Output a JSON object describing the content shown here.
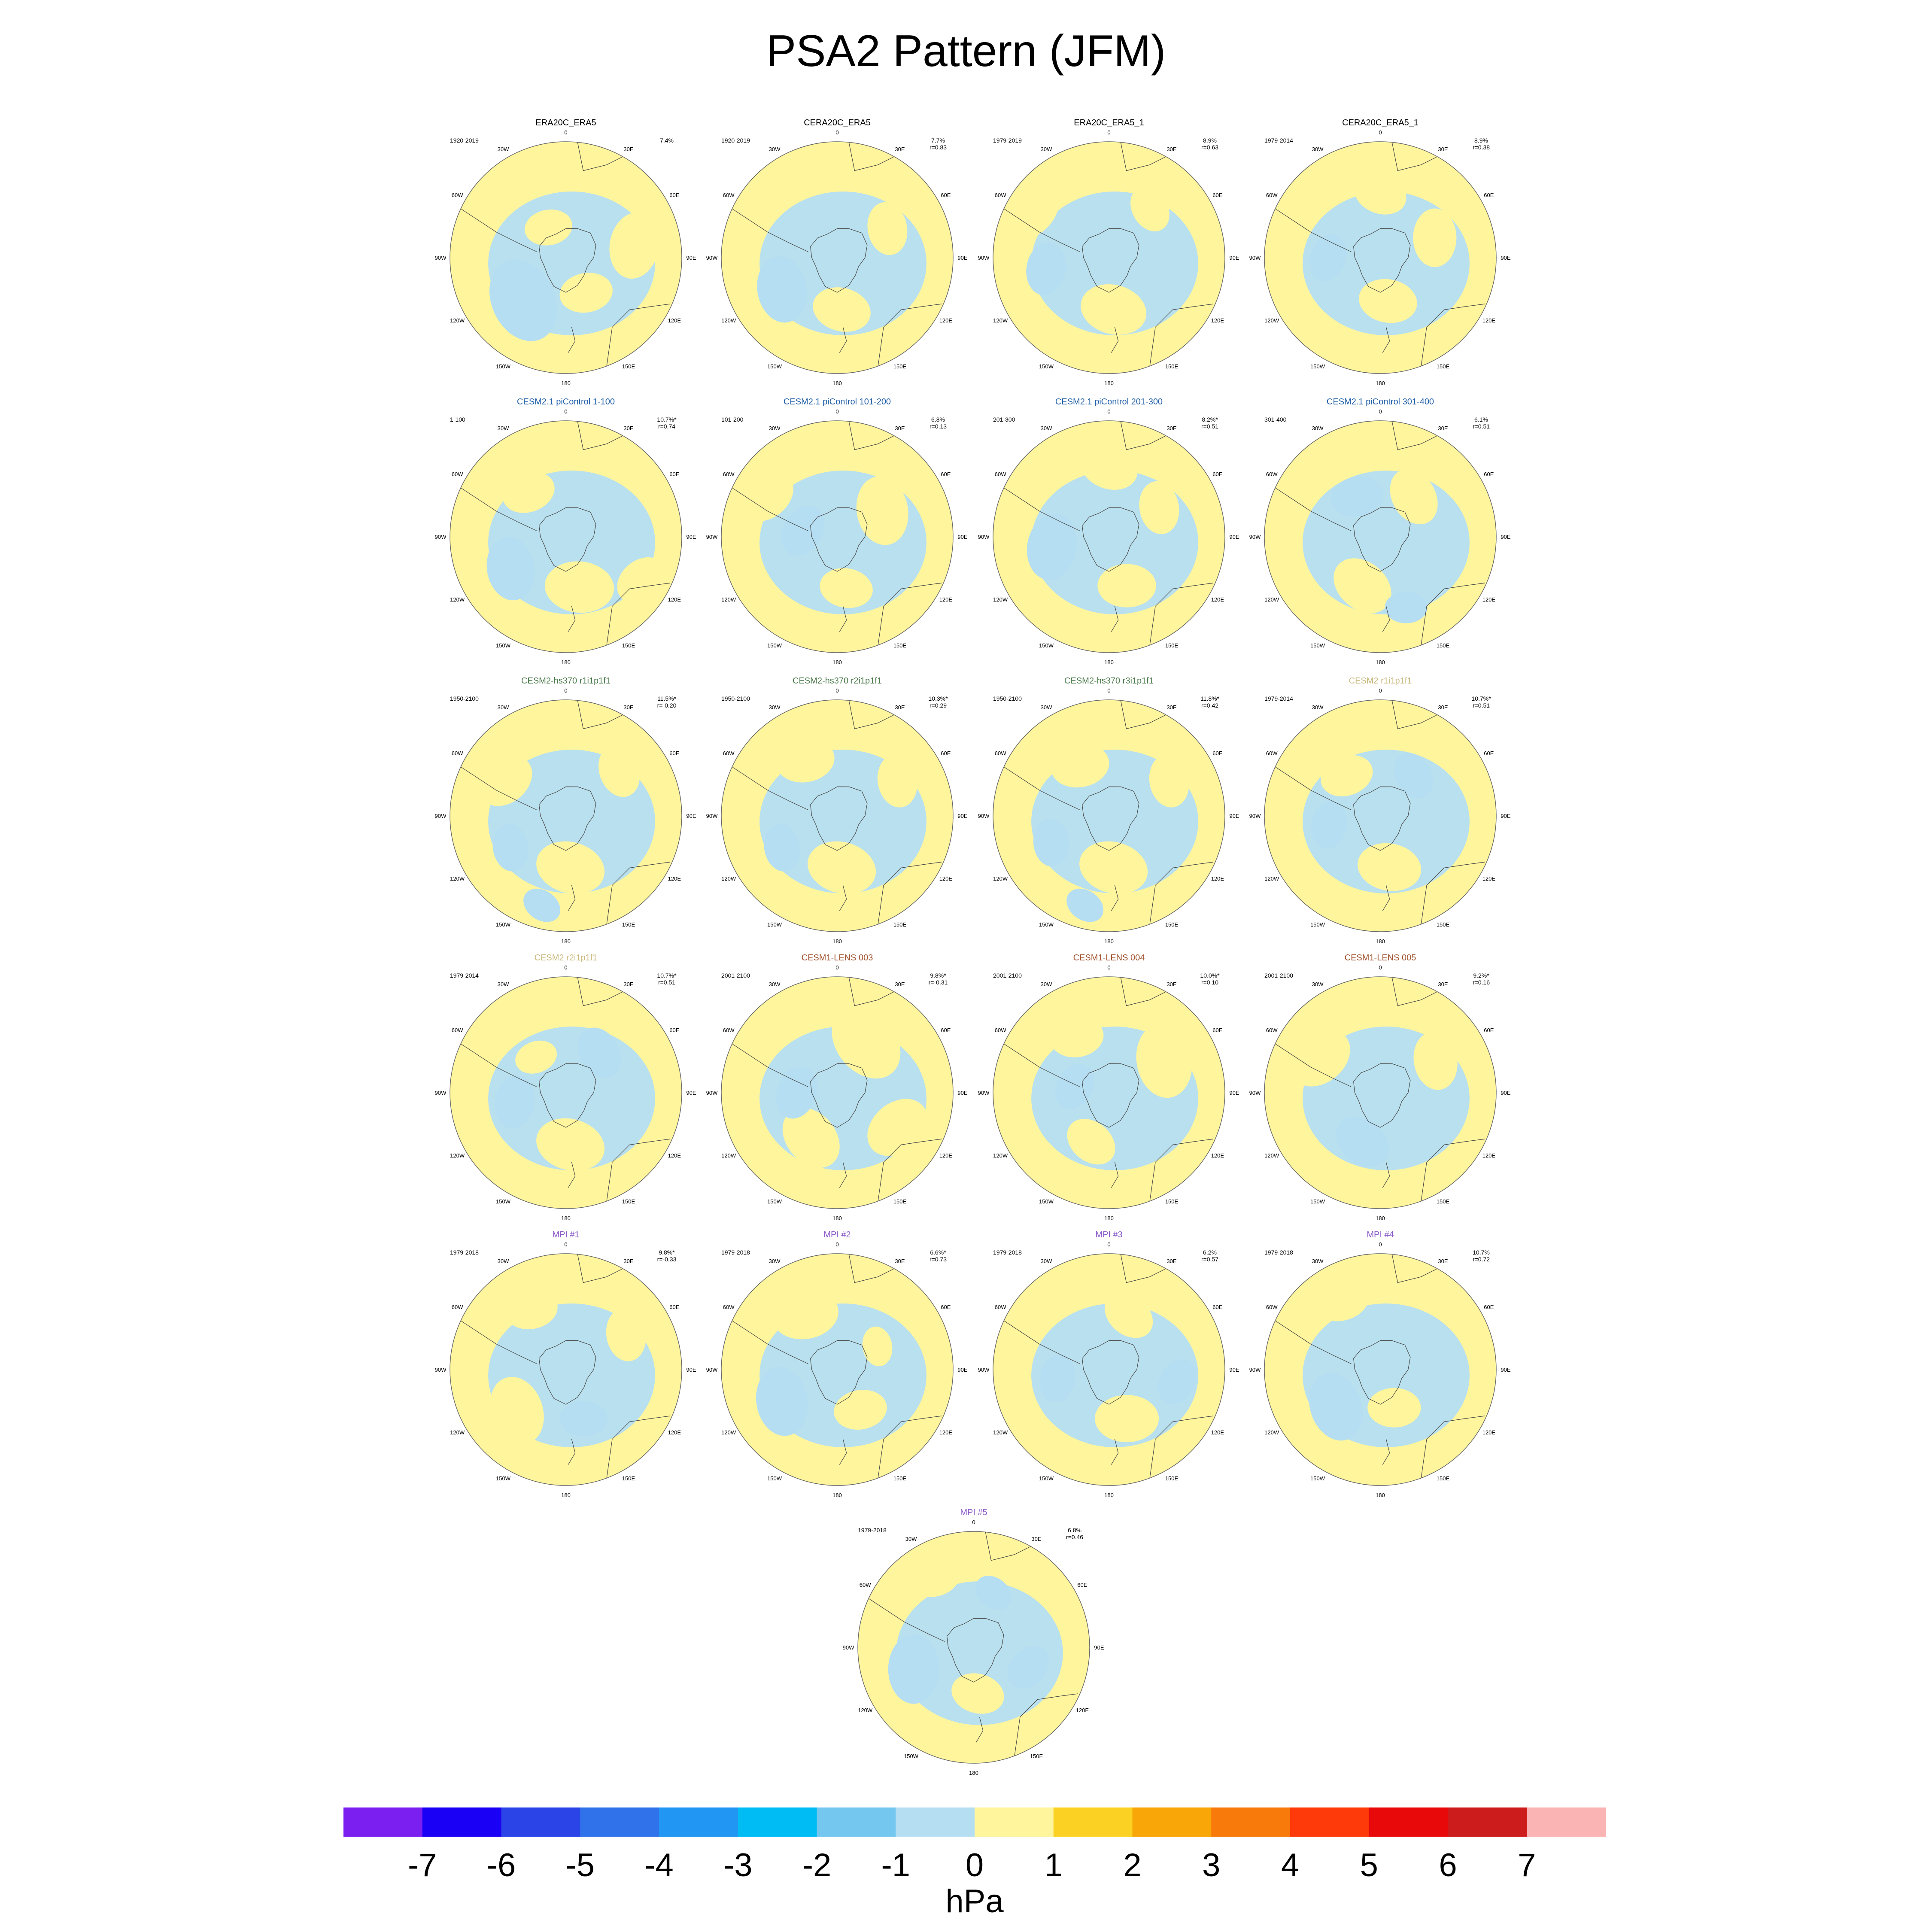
{
  "title": "PSA2 Pattern (JFM)",
  "colors": {
    "land_line": "#444444",
    "border": "#666666",
    "title_default": "#000000",
    "title_cesm21": "#1F5EA8",
    "title_hs370": "#4A7A4A",
    "title_cesm2": "#C9B87A",
    "title_lens": "#A0522D",
    "title_mpi": "#8A5AC8"
  },
  "chart_data": {
    "type": "polar-map-panels",
    "field": "PSA2 pattern sea level pressure regression",
    "units": "hPa",
    "colorbar": {
      "label": "hPa",
      "ticks": [
        "-7",
        "-6",
        "-5",
        "-4",
        "-3",
        "-2",
        "-1",
        "0",
        "1",
        "2",
        "3",
        "4",
        "5",
        "6",
        "7"
      ],
      "bins": [
        {
          "color": "#7A1FF0"
        },
        {
          "color": "#1A00F5"
        },
        {
          "color": "#2A44E8"
        },
        {
          "color": "#2F72EA"
        },
        {
          "color": "#2196F3"
        },
        {
          "color": "#00BCF5"
        },
        {
          "color": "#74C8F0"
        },
        {
          "color": "#B5DEF2"
        },
        {
          "color": "#FFF59D"
        },
        {
          "color": "#FBD224"
        },
        {
          "color": "#F8A608"
        },
        {
          "color": "#F77A0A"
        },
        {
          "color": "#FF3A0A"
        },
        {
          "color": "#E80A0A"
        },
        {
          "color": "#CC1C1C"
        },
        {
          "color": "#FAB4B4"
        }
      ]
    },
    "lon_labels": [
      "0",
      "30E",
      "60E",
      "90E",
      "120E",
      "150E",
      "180",
      "150W",
      "120W",
      "90W",
      "60W",
      "30W"
    ],
    "panels": [
      {
        "title": "ERA20C_ERA5",
        "title_color": "title_default",
        "period": "1920-2019",
        "pct": "7.4%",
        "r": "",
        "blobs": [
          [
            230,
            0.62,
            -3,
            0.13
          ],
          [
            225,
            0.55,
            -2,
            0.22
          ],
          [
            225,
            0.52,
            -1,
            0.32
          ],
          [
            150,
            0.35,
            1,
            0.2
          ],
          [
            80,
            0.6,
            1,
            0.25
          ],
          [
            330,
            0.3,
            1,
            0.18
          ]
        ]
      },
      {
        "title": "CERA20C_ERA5",
        "title_color": "title_default",
        "period": "1920-2019",
        "pct": "7.7%",
        "r": "r=0.83",
        "blobs": [
          [
            240,
            0.6,
            -2,
            0.13
          ],
          [
            240,
            0.55,
            -1,
            0.25
          ],
          [
            175,
            0.45,
            1,
            0.22
          ],
          [
            60,
            0.5,
            1,
            0.2
          ]
        ]
      },
      {
        "title": "ERA20C_ERA5_1",
        "title_color": "title_default",
        "period": "1979-2019",
        "pct": "8.9%",
        "r": "r=0.63",
        "blobs": [
          [
            175,
            0.45,
            3,
            0.1
          ],
          [
            175,
            0.45,
            2,
            0.15
          ],
          [
            175,
            0.45,
            1,
            0.25
          ],
          [
            260,
            0.55,
            -1,
            0.2
          ],
          [
            40,
            0.55,
            1,
            0.18
          ],
          [
            300,
            0.8,
            1,
            0.25
          ]
        ]
      },
      {
        "title": "CERA20C_ERA5_1",
        "title_color": "title_default",
        "period": "1979-2014",
        "pct": "8.9%",
        "r": "r=0.38",
        "blobs": [
          [
            170,
            0.38,
            2,
            0.15
          ],
          [
            170,
            0.38,
            1,
            0.22
          ],
          [
            0,
            0.55,
            2,
            0.12
          ],
          [
            0,
            0.55,
            1,
            0.2
          ],
          [
            270,
            0.45,
            -1,
            0.18
          ],
          [
            70,
            0.5,
            1,
            0.22
          ]
        ]
      },
      {
        "title": "CESM2.1 piControl 1-100",
        "title_color": "title_cesm21",
        "period": "1-100",
        "pct": "10.7%*",
        "r": "r=0.74",
        "blobs": [
          [
            165,
            0.45,
            3,
            0.1
          ],
          [
            165,
            0.45,
            2,
            0.16
          ],
          [
            165,
            0.45,
            1,
            0.26
          ],
          [
            240,
            0.55,
            -2,
            0.12
          ],
          [
            240,
            0.55,
            -1,
            0.24
          ],
          [
            120,
            0.75,
            1,
            0.2
          ],
          [
            320,
            0.5,
            1,
            0.2
          ]
        ]
      },
      {
        "title": "CESM2.1 piControl 101-200",
        "title_color": "title_cesm21",
        "period": "101-200",
        "pct": "6.8%",
        "r": "r=0.13",
        "blobs": [
          [
            60,
            0.45,
            2,
            0.15
          ],
          [
            60,
            0.45,
            1,
            0.26
          ],
          [
            170,
            0.45,
            2,
            0.12
          ],
          [
            170,
            0.45,
            1,
            0.2
          ],
          [
            280,
            0.3,
            -1,
            0.2
          ],
          [
            300,
            0.7,
            1,
            0.22
          ]
        ]
      },
      {
        "title": "CESM2.1 piControl 201-300",
        "title_color": "title_cesm21",
        "period": "201-300",
        "pct": "8.2%*",
        "r": "r=0.51",
        "blobs": [
          [
            160,
            0.45,
            2,
            0.12
          ],
          [
            160,
            0.45,
            1,
            0.22
          ],
          [
            260,
            0.5,
            -1,
            0.25
          ],
          [
            60,
            0.5,
            1,
            0.2
          ],
          [
            0,
            0.6,
            1,
            0.22
          ]
        ]
      },
      {
        "title": "CESM2.1 piControl 301-400",
        "title_color": "title_cesm21",
        "period": "301-400",
        "pct": "6.1%",
        "r": "r=0.51",
        "blobs": [
          [
            40,
            0.45,
            2,
            0.12
          ],
          [
            40,
            0.45,
            1,
            0.22
          ],
          [
            200,
            0.45,
            2,
            0.12
          ],
          [
            200,
            0.45,
            1,
            0.24
          ],
          [
            330,
            0.4,
            -1,
            0.2
          ],
          [
            160,
            0.65,
            -1,
            0.16
          ],
          [
            180,
            0.9,
            1,
            0.15
          ]
        ]
      },
      {
        "title": "CESM2-hs370 r1i1p1f1",
        "title_color": "title_hs370",
        "period": "1950-2100",
        "pct": "11.5%*",
        "r": "r=-0.20",
        "blobs": [
          [
            175,
            0.45,
            3,
            0.1
          ],
          [
            175,
            0.45,
            2,
            0.16
          ],
          [
            175,
            0.45,
            1,
            0.26
          ],
          [
            240,
            0.55,
            -1,
            0.18
          ],
          [
            195,
            0.8,
            -1,
            0.15
          ],
          [
            50,
            0.6,
            1,
            0.2
          ],
          [
            300,
            0.6,
            1,
            0.22
          ]
        ]
      },
      {
        "title": "CESM2-hs370 r2i1p1f1",
        "title_color": "title_hs370",
        "period": "1950-2100",
        "pct": "10.3%*",
        "r": "r=0.29",
        "blobs": [
          [
            175,
            0.45,
            3,
            0.1
          ],
          [
            175,
            0.45,
            2,
            0.16
          ],
          [
            175,
            0.45,
            1,
            0.26
          ],
          [
            240,
            0.55,
            -1,
            0.18
          ],
          [
            330,
            0.55,
            1,
            0.22
          ],
          [
            60,
            0.6,
            1,
            0.2
          ]
        ]
      },
      {
        "title": "CESM2-hs370 r3i1p1f1",
        "title_color": "title_hs370",
        "period": "1950-2100",
        "pct": "11.8%*",
        "r": "r=0.42",
        "blobs": [
          [
            175,
            0.45,
            3,
            0.1
          ],
          [
            175,
            0.45,
            2,
            0.16
          ],
          [
            175,
            0.45,
            1,
            0.26
          ],
          [
            245,
            0.55,
            -1,
            0.18
          ],
          [
            195,
            0.8,
            -1,
            0.15
          ],
          [
            60,
            0.6,
            1,
            0.2
          ],
          [
            330,
            0.5,
            1,
            0.22
          ]
        ]
      },
      {
        "title": "CESM2 r1i1p1f1",
        "title_color": "title_cesm2",
        "period": "1979-2014",
        "pct": "10.7%*",
        "r": "r=0.51",
        "blobs": [
          [
            170,
            0.45,
            2,
            0.12
          ],
          [
            170,
            0.45,
            1,
            0.24
          ],
          [
            320,
            0.45,
            2,
            0.1
          ],
          [
            320,
            0.45,
            1,
            0.2
          ],
          [
            40,
            0.45,
            -1,
            0.18
          ],
          [
            260,
            0.45,
            -1,
            0.18
          ]
        ]
      },
      {
        "title": "CESM2 r2i1p1f1",
        "title_color": "title_cesm2",
        "period": "1979-2014",
        "pct": "10.7%*",
        "r": "r=0.51",
        "blobs": [
          [
            175,
            0.45,
            2,
            0.12
          ],
          [
            175,
            0.45,
            1,
            0.26
          ],
          [
            320,
            0.4,
            2,
            0.08
          ],
          [
            320,
            0.4,
            1,
            0.16
          ],
          [
            40,
            0.45,
            -1,
            0.2
          ],
          [
            260,
            0.45,
            -1,
            0.2
          ]
        ]
      },
      {
        "title": "CESM1-LENS 003",
        "title_color": "title_lens",
        "period": "2001-2100",
        "pct": "9.8%*",
        "r": "r=-0.31",
        "blobs": [
          [
            210,
            0.45,
            3,
            0.08
          ],
          [
            210,
            0.45,
            2,
            0.14
          ],
          [
            210,
            0.45,
            1,
            0.25
          ],
          [
            270,
            0.35,
            -1,
            0.2
          ],
          [
            30,
            0.5,
            1,
            0.3
          ],
          [
            120,
            0.6,
            1,
            0.25
          ]
        ]
      },
      {
        "title": "CESM1-LENS 004",
        "title_color": "title_lens",
        "period": "2001-2100",
        "pct": "10.0%*",
        "r": "r=0.10",
        "blobs": [
          [
            200,
            0.45,
            2,
            0.1
          ],
          [
            200,
            0.45,
            1,
            0.2
          ],
          [
            280,
            0.3,
            -1,
            0.18
          ],
          [
            60,
            0.55,
            1,
            0.28
          ],
          [
            330,
            0.55,
            1,
            0.2
          ]
        ]
      },
      {
        "title": "CESM1-LENS 005",
        "title_color": "title_lens",
        "period": "2001-2100",
        "pct": "9.2%*",
        "r": "r=0.16",
        "blobs": [
          [
            200,
            0.45,
            -2,
            0.1
          ],
          [
            200,
            0.45,
            -1,
            0.22
          ],
          [
            300,
            0.6,
            1,
            0.25
          ],
          [
            60,
            0.55,
            1,
            0.22
          ],
          [
            0,
            0.75,
            1,
            0.2
          ]
        ]
      },
      {
        "title": "MPI #1",
        "title_color": "title_mpi",
        "period": "1979-2018",
        "pct": "9.8%*",
        "r": "r=-0.33",
        "blobs": [
          [
            230,
            0.55,
            3,
            0.1
          ],
          [
            230,
            0.55,
            2,
            0.16
          ],
          [
            230,
            0.55,
            1,
            0.26
          ],
          [
            160,
            0.45,
            -1,
            0.18
          ],
          [
            60,
            0.6,
            1,
            0.2
          ],
          [
            330,
            0.6,
            1,
            0.2
          ]
        ]
      },
      {
        "title": "MPI #2",
        "title_color": "title_mpi",
        "period": "1979-2018",
        "pct": "6.6%*",
        "r": "r=0.73",
        "blobs": [
          [
            240,
            0.55,
            -2,
            0.12
          ],
          [
            240,
            0.55,
            -1,
            0.26
          ],
          [
            150,
            0.4,
            1,
            0.2
          ],
          [
            330,
            0.55,
            1,
            0.25
          ],
          [
            60,
            0.4,
            1,
            0.15
          ]
        ]
      },
      {
        "title": "MPI #3",
        "title_color": "title_mpi",
        "period": "1979-2018",
        "pct": "6.2%",
        "r": "r=0.57",
        "blobs": [
          [
            160,
            0.45,
            2,
            0.12
          ],
          [
            160,
            0.45,
            1,
            0.24
          ],
          [
            20,
            0.5,
            2,
            0.08
          ],
          [
            20,
            0.5,
            1,
            0.2
          ],
          [
            260,
            0.45,
            -1,
            0.18
          ],
          [
            100,
            0.6,
            -1,
            0.18
          ]
        ]
      },
      {
        "title": "MPI #4",
        "title_color": "title_mpi",
        "period": "1979-2018",
        "pct": "10.7%",
        "r": "r=0.72",
        "blobs": [
          [
            230,
            0.5,
            -4,
            0.08
          ],
          [
            230,
            0.5,
            -3,
            0.12
          ],
          [
            230,
            0.5,
            -2,
            0.17
          ],
          [
            230,
            0.5,
            -1,
            0.26
          ],
          [
            160,
            0.35,
            2,
            0.1
          ],
          [
            160,
            0.35,
            1,
            0.2
          ],
          [
            330,
            0.7,
            1,
            0.22
          ]
        ]
      },
      {
        "title": "MPI #5",
        "title_color": "title_mpi",
        "period": "1979-2018",
        "pct": "6.8%",
        "r": "r=0.46",
        "blobs": [
          [
            250,
            0.55,
            -2,
            0.12
          ],
          [
            250,
            0.55,
            -1,
            0.26
          ],
          [
            175,
            0.4,
            1,
            0.2
          ],
          [
            20,
            0.5,
            -1,
            0.15
          ],
          [
            110,
            0.5,
            -1,
            0.18
          ],
          [
            330,
            0.7,
            1,
            0.2
          ]
        ]
      }
    ]
  }
}
